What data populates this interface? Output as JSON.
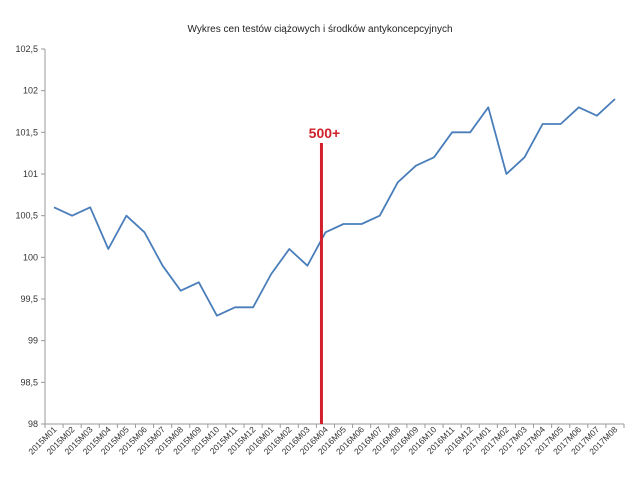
{
  "chart_data": {
    "type": "line",
    "title": "Wykres cen testów ciążowych i środków antykoncepcyjnych",
    "xlabel": "",
    "ylabel": "",
    "categories": [
      "2015M01",
      "2015M02",
      "2015M03",
      "2015M04",
      "2015M05",
      "2015M06",
      "2015M07",
      "2015M08",
      "2015M09",
      "2015M10",
      "2015M11",
      "2015M12",
      "2016M01",
      "2016M02",
      "2016M03",
      "2016M04",
      "2016M05",
      "2016M06",
      "2016M07",
      "2016M08",
      "2016M09",
      "2016M10",
      "2016M11",
      "2016M12",
      "2017M01",
      "2017M02",
      "2017M03",
      "2017M04",
      "2017M05",
      "2017M06",
      "2017M07",
      "2017M08"
    ],
    "series": [
      {
        "values": [
          100.6,
          100.5,
          100.6,
          100.1,
          100.5,
          100.3,
          99.9,
          99.6,
          99.7,
          99.3,
          99.4,
          99.4,
          99.8,
          100.1,
          99.9,
          100.3,
          100.4,
          100.4,
          100.5,
          100.9,
          101.1,
          101.2,
          101.5,
          101.5,
          101.8,
          101.0,
          101.2,
          101.6,
          101.6,
          101.8,
          101.7,
          101.9
        ],
        "color": "#4a7ebb"
      }
    ],
    "ylim": [
      98,
      102.5
    ],
    "yticks": [
      "98",
      "98,5",
      "99",
      "99,5",
      "100",
      "100,5",
      "101",
      "101,5",
      "102",
      "102,5"
    ],
    "grid": false,
    "legend": "none",
    "annotation": {
      "label": "500+",
      "at_category": "2016M04",
      "color": "#d0202a"
    }
  }
}
